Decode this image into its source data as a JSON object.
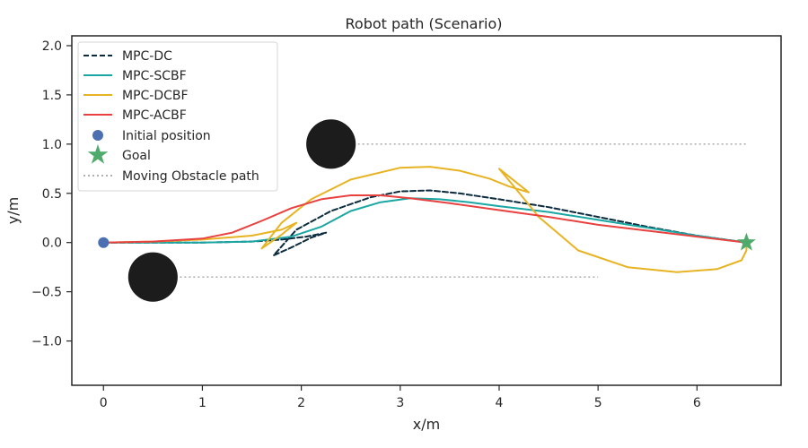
{
  "chart_data": {
    "type": "line",
    "title": "Robot path (Scenario)",
    "xlabel": "x/m",
    "ylabel": "y/m",
    "xlim": [
      -0.32,
      6.85
    ],
    "ylim": [
      -1.45,
      2.1
    ],
    "xticks": [
      0,
      1,
      2,
      3,
      4,
      5,
      6
    ],
    "yticks": [
      2.0,
      1.5,
      1.0,
      0.5,
      0.0,
      -0.5,
      -1.0
    ],
    "xtick_labels": [
      "0",
      "1",
      "2",
      "3",
      "4",
      "5",
      "6"
    ],
    "ytick_labels": [
      "2.0",
      "1.5",
      "1.0",
      "0.5",
      "0.0",
      "−0.5",
      "−1.0"
    ],
    "grid": false,
    "legend_position": "top-left",
    "series": [
      {
        "name": "MPC-DC",
        "color": "#0b2c3f",
        "style": "dashed",
        "x": [
          0,
          0.5,
          1.0,
          1.5,
          1.8,
          2.05,
          2.25,
          2.1,
          1.9,
          1.72,
          1.95,
          2.3,
          2.7,
          3.0,
          3.3,
          3.6,
          4.0,
          4.5,
          5.0,
          5.5,
          6.0,
          6.5
        ],
        "y": [
          0,
          0.0,
          0.0,
          0.01,
          0.03,
          0.06,
          0.1,
          0.05,
          -0.05,
          -0.13,
          0.13,
          0.32,
          0.46,
          0.52,
          0.53,
          0.5,
          0.44,
          0.36,
          0.26,
          0.16,
          0.07,
          0.0
        ]
      },
      {
        "name": "MPC-SCBF",
        "color": "#1aa7a4",
        "style": "solid",
        "x": [
          0,
          0.5,
          1.0,
          1.5,
          1.9,
          2.2,
          2.5,
          2.8,
          3.1,
          3.4,
          3.7,
          4.0,
          4.5,
          5.0,
          5.5,
          6.0,
          6.5
        ],
        "y": [
          0,
          0.0,
          0.0,
          0.01,
          0.06,
          0.16,
          0.32,
          0.41,
          0.45,
          0.44,
          0.41,
          0.37,
          0.31,
          0.23,
          0.15,
          0.07,
          0.0
        ]
      },
      {
        "name": "MPC-DCBF",
        "color": "#e8b322",
        "style": "solid",
        "x": [
          0,
          0.5,
          1.0,
          1.5,
          1.8,
          1.95,
          1.8,
          1.6,
          1.8,
          2.1,
          2.5,
          3.0,
          3.3,
          3.6,
          3.9,
          4.1,
          4.3,
          4.0,
          4.15,
          4.4,
          4.8,
          5.3,
          5.8,
          6.2,
          6.45,
          6.5,
          6.5
        ],
        "y": [
          0,
          0.01,
          0.03,
          0.07,
          0.13,
          0.2,
          0.08,
          -0.06,
          0.2,
          0.44,
          0.64,
          0.76,
          0.77,
          0.73,
          0.65,
          0.57,
          0.51,
          0.75,
          0.57,
          0.26,
          -0.08,
          -0.25,
          -0.3,
          -0.27,
          -0.18,
          -0.08,
          0.0
        ]
      },
      {
        "name": "MPC-ACBF",
        "color": "#e8413f",
        "style": "solid",
        "x": [
          0,
          0.5,
          1.0,
          1.3,
          1.6,
          1.9,
          2.2,
          2.5,
          2.8,
          3.1,
          3.5,
          4.0,
          4.5,
          5.0,
          5.5,
          6.0,
          6.5
        ],
        "y": [
          0,
          0.01,
          0.04,
          0.1,
          0.22,
          0.35,
          0.44,
          0.48,
          0.48,
          0.45,
          0.4,
          0.33,
          0.26,
          0.18,
          0.12,
          0.06,
          0.0
        ]
      }
    ],
    "initial_position": {
      "name": "Initial position",
      "x": 0,
      "y": 0,
      "color": "#4b6fb1"
    },
    "goal": {
      "name": "Goal",
      "x": 6.5,
      "y": 0,
      "color": "#4faa6b"
    },
    "obstacles": [
      {
        "x": 2.3,
        "y": 1.0,
        "radius": 0.25,
        "path_end_x": 6.5,
        "color": "#1c1c1c"
      },
      {
        "x": 0.5,
        "y": -0.35,
        "radius": 0.25,
        "path_end_x": 5.0,
        "color": "#1c1c1c"
      }
    ],
    "obstacle_path": {
      "name": "Moving Obstacle path",
      "color": "#b0b0b0"
    }
  }
}
